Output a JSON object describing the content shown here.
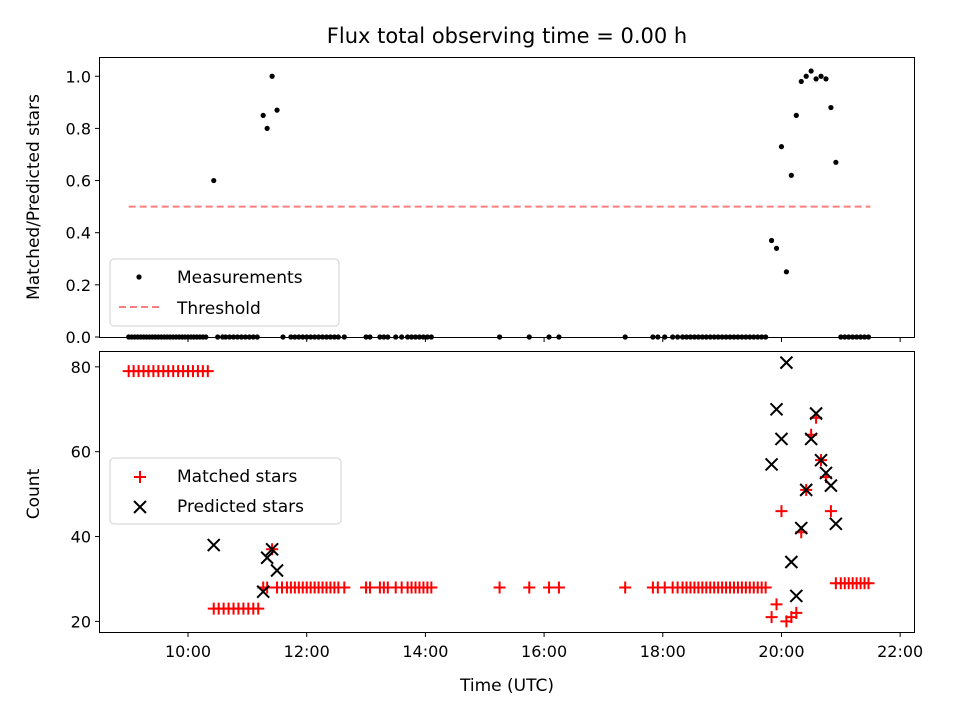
{
  "figure": {
    "title": "Flux total observing time = 0.00 h",
    "xlabel": "Time (UTC)"
  },
  "chart_data": [
    {
      "type": "scatter",
      "ylabel": "Matched/Predicted stars",
      "xlim": [
        "08:31",
        "22:14"
      ],
      "ylim": [
        0,
        1.07
      ],
      "yticks": [
        "0.0",
        "0.2",
        "0.4",
        "0.6",
        "0.8",
        "1.0"
      ],
      "legend_position": "lower-left",
      "series": [
        {
          "name": "Measurements",
          "marker": "dot",
          "color": "#000000",
          "points": [
            [
              "09:00",
              0
            ],
            [
              "09:03",
              0
            ],
            [
              "09:06",
              0
            ],
            [
              "09:09",
              0
            ],
            [
              "09:12",
              0
            ],
            [
              "09:15",
              0
            ],
            [
              "09:18",
              0
            ],
            [
              "09:21",
              0
            ],
            [
              "09:24",
              0
            ],
            [
              "09:27",
              0
            ],
            [
              "09:30",
              0
            ],
            [
              "09:33",
              0
            ],
            [
              "09:36",
              0
            ],
            [
              "09:39",
              0
            ],
            [
              "09:42",
              0
            ],
            [
              "09:45",
              0
            ],
            [
              "09:48",
              0
            ],
            [
              "09:51",
              0
            ],
            [
              "09:54",
              0
            ],
            [
              "09:57",
              0
            ],
            [
              "10:00",
              0
            ],
            [
              "10:03",
              0
            ],
            [
              "10:06",
              0
            ],
            [
              "10:09",
              0
            ],
            [
              "10:12",
              0
            ],
            [
              "10:15",
              0
            ],
            [
              "10:18",
              0
            ],
            [
              "10:26",
              0.6
            ],
            [
              "10:30",
              0
            ],
            [
              "10:35",
              0
            ],
            [
              "10:38",
              0
            ],
            [
              "10:42",
              0
            ],
            [
              "10:46",
              0
            ],
            [
              "10:50",
              0
            ],
            [
              "10:54",
              0
            ],
            [
              "10:58",
              0
            ],
            [
              "11:02",
              0
            ],
            [
              "11:06",
              0
            ],
            [
              "11:10",
              0
            ],
            [
              "11:16",
              0.85
            ],
            [
              "11:20",
              0.8
            ],
            [
              "11:25",
              1.0
            ],
            [
              "11:30",
              0.87
            ],
            [
              "11:36",
              0
            ],
            [
              "11:44",
              0
            ],
            [
              "11:48",
              0
            ],
            [
              "11:52",
              0
            ],
            [
              "11:56",
              0
            ],
            [
              "12:00",
              0
            ],
            [
              "12:04",
              0
            ],
            [
              "12:08",
              0
            ],
            [
              "12:12",
              0
            ],
            [
              "12:16",
              0
            ],
            [
              "12:20",
              0
            ],
            [
              "12:24",
              0
            ],
            [
              "12:28",
              0
            ],
            [
              "12:32",
              0
            ],
            [
              "12:38",
              0
            ],
            [
              "13:00",
              0
            ],
            [
              "13:04",
              0
            ],
            [
              "13:14",
              0
            ],
            [
              "13:18",
              0
            ],
            [
              "13:22",
              0
            ],
            [
              "13:30",
              0
            ],
            [
              "13:36",
              0
            ],
            [
              "13:42",
              0
            ],
            [
              "13:46",
              0
            ],
            [
              "13:50",
              0
            ],
            [
              "13:54",
              0
            ],
            [
              "13:58",
              0
            ],
            [
              "14:02",
              0
            ],
            [
              "14:06",
              0
            ],
            [
              "15:15",
              0
            ],
            [
              "15:45",
              0
            ],
            [
              "16:05",
              0
            ],
            [
              "16:15",
              0
            ],
            [
              "17:22",
              0
            ],
            [
              "17:50",
              0
            ],
            [
              "17:55",
              0
            ],
            [
              "18:02",
              0
            ],
            [
              "18:10",
              0
            ],
            [
              "18:15",
              0
            ],
            [
              "18:20",
              0
            ],
            [
              "18:24",
              0
            ],
            [
              "18:28",
              0
            ],
            [
              "18:32",
              0
            ],
            [
              "18:36",
              0
            ],
            [
              "18:40",
              0
            ],
            [
              "18:44",
              0
            ],
            [
              "18:48",
              0
            ],
            [
              "18:52",
              0
            ],
            [
              "18:56",
              0
            ],
            [
              "19:00",
              0
            ],
            [
              "19:04",
              0
            ],
            [
              "19:08",
              0
            ],
            [
              "19:12",
              0
            ],
            [
              "19:16",
              0
            ],
            [
              "19:20",
              0
            ],
            [
              "19:24",
              0
            ],
            [
              "19:28",
              0
            ],
            [
              "19:32",
              0
            ],
            [
              "19:36",
              0
            ],
            [
              "19:40",
              0
            ],
            [
              "19:44",
              0
            ],
            [
              "19:50",
              0.37
            ],
            [
              "19:55",
              0.34
            ],
            [
              "20:00",
              0.73
            ],
            [
              "20:05",
              0.25
            ],
            [
              "20:10",
              0.62
            ],
            [
              "20:15",
              0.85
            ],
            [
              "20:20",
              0.98
            ],
            [
              "20:25",
              1.0
            ],
            [
              "20:30",
              1.02
            ],
            [
              "20:35",
              0.99
            ],
            [
              "20:40",
              1.0
            ],
            [
              "20:45",
              0.99
            ],
            [
              "20:50",
              0.88
            ],
            [
              "20:55",
              0.67
            ],
            [
              "21:00",
              0
            ],
            [
              "21:04",
              0
            ],
            [
              "21:08",
              0
            ],
            [
              "21:12",
              0
            ],
            [
              "21:16",
              0
            ],
            [
              "21:20",
              0
            ],
            [
              "21:24",
              0
            ],
            [
              "21:28",
              0
            ]
          ]
        },
        {
          "name": "Threshold",
          "line_style": "dashed",
          "color": "#f77f7f",
          "points": [
            [
              "09:00",
              0.5
            ],
            [
              "21:30",
              0.5
            ]
          ]
        }
      ]
    },
    {
      "type": "scatter",
      "ylabel": "Count",
      "xlim": [
        "08:31",
        "22:14"
      ],
      "ylim": [
        17.5,
        83.5
      ],
      "yticks": [
        "20",
        "40",
        "60",
        "80"
      ],
      "xticks": [
        "10:00",
        "12:00",
        "14:00",
        "16:00",
        "18:00",
        "20:00",
        "22:00"
      ],
      "legend_position": "center-left",
      "series": [
        {
          "name": "Matched stars",
          "marker": "plus",
          "color": "#ff0000",
          "points": [
            [
              "09:00",
              79
            ],
            [
              "09:05",
              79
            ],
            [
              "09:10",
              79
            ],
            [
              "09:15",
              79
            ],
            [
              "09:20",
              79
            ],
            [
              "09:25",
              79
            ],
            [
              "09:30",
              79
            ],
            [
              "09:35",
              79
            ],
            [
              "09:40",
              79
            ],
            [
              "09:45",
              79
            ],
            [
              "09:50",
              79
            ],
            [
              "09:55",
              79
            ],
            [
              "10:00",
              79
            ],
            [
              "10:05",
              79
            ],
            [
              "10:10",
              79
            ],
            [
              "10:15",
              79
            ],
            [
              "10:20",
              79
            ],
            [
              "10:26",
              23
            ],
            [
              "10:31",
              23
            ],
            [
              "10:36",
              23
            ],
            [
              "10:41",
              23
            ],
            [
              "10:46",
              23
            ],
            [
              "10:51",
              23
            ],
            [
              "10:56",
              23
            ],
            [
              "11:01",
              23
            ],
            [
              "11:06",
              23
            ],
            [
              "11:11",
              23
            ],
            [
              "11:16",
              28
            ],
            [
              "11:20",
              28
            ],
            [
              "11:25",
              37
            ],
            [
              "11:30",
              28
            ],
            [
              "11:35",
              28
            ],
            [
              "11:40",
              28
            ],
            [
              "11:44",
              28
            ],
            [
              "11:48",
              28
            ],
            [
              "11:52",
              28
            ],
            [
              "11:56",
              28
            ],
            [
              "12:00",
              28
            ],
            [
              "12:04",
              28
            ],
            [
              "12:08",
              28
            ],
            [
              "12:12",
              28
            ],
            [
              "12:16",
              28
            ],
            [
              "12:20",
              28
            ],
            [
              "12:24",
              28
            ],
            [
              "12:28",
              28
            ],
            [
              "12:32",
              28
            ],
            [
              "12:38",
              28
            ],
            [
              "13:00",
              28
            ],
            [
              "13:04",
              28
            ],
            [
              "13:14",
              28
            ],
            [
              "13:18",
              28
            ],
            [
              "13:22",
              28
            ],
            [
              "13:30",
              28
            ],
            [
              "13:36",
              28
            ],
            [
              "13:42",
              28
            ],
            [
              "13:46",
              28
            ],
            [
              "13:50",
              28
            ],
            [
              "13:54",
              28
            ],
            [
              "13:58",
              28
            ],
            [
              "14:02",
              28
            ],
            [
              "14:06",
              28
            ],
            [
              "15:15",
              28
            ],
            [
              "15:45",
              28
            ],
            [
              "16:05",
              28
            ],
            [
              "16:15",
              28
            ],
            [
              "17:22",
              28
            ],
            [
              "17:50",
              28
            ],
            [
              "17:55",
              28
            ],
            [
              "18:02",
              28
            ],
            [
              "18:10",
              28
            ],
            [
              "18:15",
              28
            ],
            [
              "18:20",
              28
            ],
            [
              "18:24",
              28
            ],
            [
              "18:28",
              28
            ],
            [
              "18:32",
              28
            ],
            [
              "18:36",
              28
            ],
            [
              "18:40",
              28
            ],
            [
              "18:44",
              28
            ],
            [
              "18:48",
              28
            ],
            [
              "18:52",
              28
            ],
            [
              "18:56",
              28
            ],
            [
              "19:00",
              28
            ],
            [
              "19:04",
              28
            ],
            [
              "19:08",
              28
            ],
            [
              "19:12",
              28
            ],
            [
              "19:16",
              28
            ],
            [
              "19:20",
              28
            ],
            [
              "19:24",
              28
            ],
            [
              "19:28",
              28
            ],
            [
              "19:32",
              28
            ],
            [
              "19:36",
              28
            ],
            [
              "19:40",
              28
            ],
            [
              "19:44",
              28
            ],
            [
              "19:50",
              21
            ],
            [
              "19:55",
              24
            ],
            [
              "20:00",
              46
            ],
            [
              "20:05",
              20
            ],
            [
              "20:10",
              21
            ],
            [
              "20:15",
              22
            ],
            [
              "20:20",
              41
            ],
            [
              "20:25",
              51
            ],
            [
              "20:30",
              64
            ],
            [
              "20:35",
              68
            ],
            [
              "20:40",
              58
            ],
            [
              "20:45",
              54
            ],
            [
              "20:50",
              46
            ],
            [
              "20:55",
              29
            ],
            [
              "21:00",
              29
            ],
            [
              "21:04",
              29
            ],
            [
              "21:08",
              29
            ],
            [
              "21:12",
              29
            ],
            [
              "21:16",
              29
            ],
            [
              "21:20",
              29
            ],
            [
              "21:24",
              29
            ],
            [
              "21:28",
              29
            ]
          ]
        },
        {
          "name": "Predicted stars",
          "marker": "x",
          "color": "#000000",
          "points": [
            [
              "10:26",
              38
            ],
            [
              "11:16",
              27
            ],
            [
              "11:20",
              35
            ],
            [
              "11:25",
              37
            ],
            [
              "11:30",
              32
            ],
            [
              "19:50",
              57
            ],
            [
              "19:55",
              70
            ],
            [
              "20:00",
              63
            ],
            [
              "20:05",
              81
            ],
            [
              "20:10",
              34
            ],
            [
              "20:15",
              26
            ],
            [
              "20:20",
              42
            ],
            [
              "20:25",
              51
            ],
            [
              "20:30",
              63
            ],
            [
              "20:35",
              69
            ],
            [
              "20:40",
              58
            ],
            [
              "20:45",
              55
            ],
            [
              "20:50",
              52
            ],
            [
              "20:55",
              43
            ]
          ]
        }
      ]
    }
  ]
}
